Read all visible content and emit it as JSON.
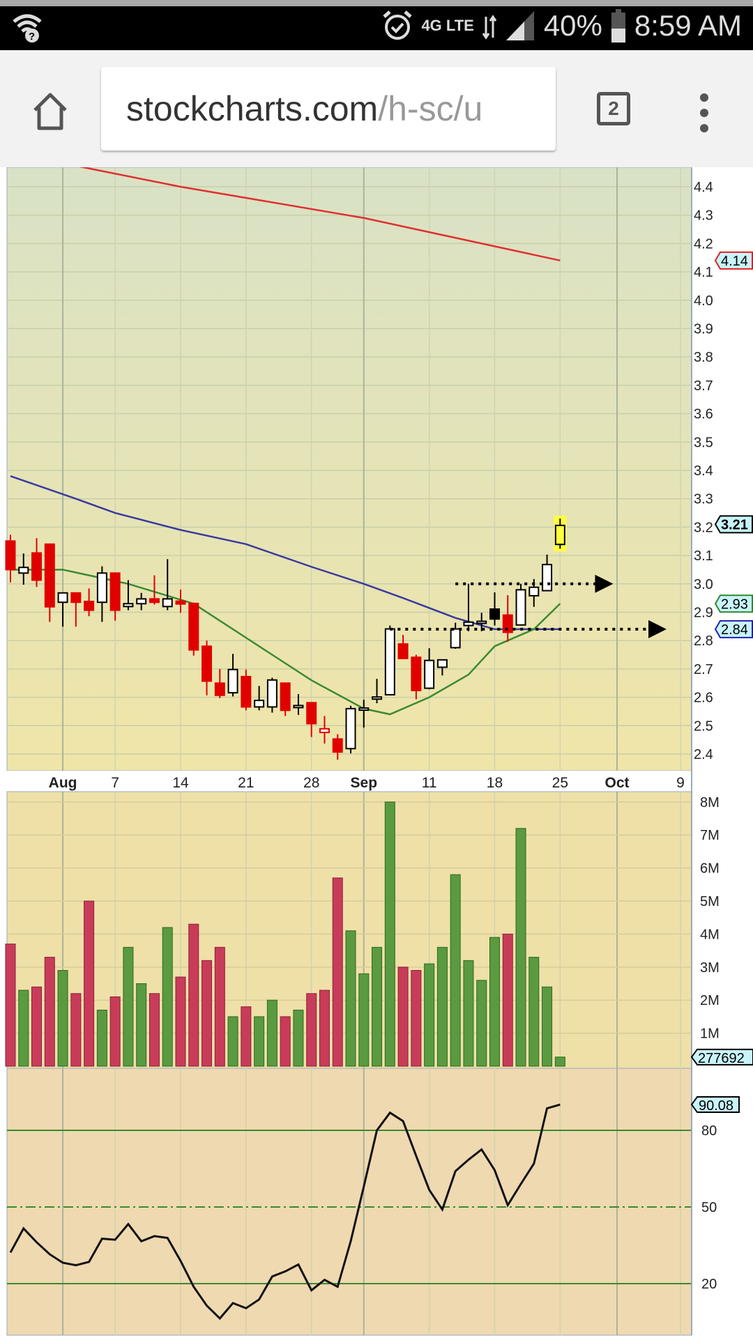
{
  "status_bar": {
    "battery": "40%",
    "time": "8:59 AM",
    "network": "4G LTE",
    "icons": [
      "wifi-question-icon",
      "alarm-icon",
      "network-4g-icon",
      "signal-icon",
      "battery-icon"
    ]
  },
  "browser": {
    "url_host": "stockcharts.com",
    "url_path": "/h-sc/u",
    "tab_count": "2",
    "icons": [
      "home-icon",
      "tabs-icon",
      "menu-dots-icon"
    ]
  },
  "chart_data": {
    "type": "candlestick",
    "price_axis": {
      "range": [
        2.35,
        4.45
      ],
      "ticks": [
        "4.4",
        "4.3",
        "4.2",
        "4.1",
        "4.0",
        "3.9",
        "3.8",
        "3.7",
        "3.6",
        "3.5",
        "3.4",
        "3.3",
        "3.2",
        "3.1",
        "3.0",
        "2.9",
        "2.8",
        "2.7",
        "2.6",
        "2.5",
        "2.4"
      ]
    },
    "price_labels": [
      {
        "text": "4.14",
        "value": 4.14,
        "color": "#e02020"
      },
      {
        "text": "3.21",
        "value": 3.21,
        "color": "#000000"
      },
      {
        "text": "2.93",
        "value": 2.93,
        "color": "#2a8a2a"
      },
      {
        "text": "2.84",
        "value": 2.84,
        "color": "#2020b0"
      }
    ],
    "date_labels": [
      {
        "label": "Aug",
        "date": "Aug 1",
        "month": true
      },
      {
        "label": "7",
        "date": "Aug 7"
      },
      {
        "label": "14",
        "date": "Aug 14"
      },
      {
        "label": "21",
        "date": "Aug 21"
      },
      {
        "label": "28",
        "date": "Aug 28"
      },
      {
        "label": "Sep",
        "date": "Sep 1",
        "month": true
      },
      {
        "label": "11",
        "date": "Sep 11"
      },
      {
        "label": "18",
        "date": "Sep 18"
      },
      {
        "label": "25",
        "date": "Sep 25"
      },
      {
        "label": "Oct",
        "date": "Oct 2",
        "month": true
      },
      {
        "label": "9",
        "date": "Oct 9"
      }
    ],
    "candles": [
      {
        "d": "Jul 26",
        "o": 3.151,
        "h": 3.173,
        "l": 3.005,
        "c": 3.05
      },
      {
        "d": "Jul 27",
        "o": 3.038,
        "h": 3.107,
        "l": 2.997,
        "c": 3.058
      },
      {
        "d": "Jul 28",
        "o": 3.109,
        "h": 3.161,
        "l": 2.989,
        "c": 3.013
      },
      {
        "d": "Jul 31",
        "o": 3.14,
        "h": 3.14,
        "l": 2.866,
        "c": 2.919
      },
      {
        "d": "Aug 1",
        "o": 2.935,
        "h": 2.968,
        "l": 2.849,
        "c": 2.968
      },
      {
        "d": "Aug 2",
        "o": 2.968,
        "h": 2.968,
        "l": 2.849,
        "c": 2.935
      },
      {
        "d": "Aug 3",
        "o": 2.938,
        "h": 2.984,
        "l": 2.886,
        "c": 2.907
      },
      {
        "d": "Aug 4",
        "o": 2.935,
        "h": 3.062,
        "l": 2.866,
        "c": 3.038
      },
      {
        "d": "Aug 7",
        "o": 3.038,
        "h": 3.038,
        "l": 2.87,
        "c": 2.907
      },
      {
        "d": "Aug 8",
        "o": 2.92,
        "h": 3.013,
        "l": 2.907,
        "c": 2.93
      },
      {
        "d": "Aug 9",
        "o": 2.93,
        "h": 2.968,
        "l": 2.907,
        "c": 2.947
      },
      {
        "d": "Aug 10",
        "o": 2.947,
        "h": 3.03,
        "l": 2.927,
        "c": 2.935
      },
      {
        "d": "Aug 11",
        "o": 2.92,
        "h": 3.087,
        "l": 2.907,
        "c": 2.947
      },
      {
        "d": "Aug 14",
        "o": 2.939,
        "h": 2.98,
        "l": 2.898,
        "c": 2.929
      },
      {
        "d": "Aug 15",
        "o": 2.931,
        "h": 2.931,
        "l": 2.747,
        "c": 2.767
      },
      {
        "d": "Aug 16",
        "o": 2.78,
        "h": 2.8,
        "l": 2.607,
        "c": 2.657
      },
      {
        "d": "Aug 17",
        "o": 2.65,
        "h": 2.7,
        "l": 2.597,
        "c": 2.607
      },
      {
        "d": "Aug 18",
        "o": 2.616,
        "h": 2.753,
        "l": 2.603,
        "c": 2.698
      },
      {
        "d": "Aug 21",
        "o": 2.673,
        "h": 2.698,
        "l": 2.554,
        "c": 2.566
      },
      {
        "d": "Aug 22",
        "o": 2.566,
        "h": 2.64,
        "l": 2.554,
        "c": 2.589
      },
      {
        "d": "Aug 23",
        "o": 2.566,
        "h": 2.669,
        "l": 2.546,
        "c": 2.661
      },
      {
        "d": "Aug 24",
        "o": 2.65,
        "h": 2.65,
        "l": 2.534,
        "c": 2.554
      },
      {
        "d": "Aug 25",
        "o": 2.569,
        "h": 2.611,
        "l": 2.538,
        "c": 2.571
      },
      {
        "d": "Aug 28",
        "o": 2.581,
        "h": 2.581,
        "l": 2.46,
        "c": 2.507
      },
      {
        "d": "Aug 29",
        "o": 2.476,
        "h": 2.534,
        "l": 2.437,
        "c": 2.489
      },
      {
        "d": "Aug 30",
        "o": 2.453,
        "h": 2.47,
        "l": 2.38,
        "c": 2.407
      },
      {
        "d": "Aug 31",
        "o": 2.419,
        "h": 2.57,
        "l": 2.402,
        "c": 2.56
      },
      {
        "d": "Sep 1",
        "o": 2.556,
        "h": 2.591,
        "l": 2.493,
        "c": 2.562
      },
      {
        "d": "Sep 5",
        "o": 2.598,
        "h": 2.665,
        "l": 2.579,
        "c": 2.601
      },
      {
        "d": "Sep 6",
        "o": 2.609,
        "h": 2.853,
        "l": 2.609,
        "c": 2.841
      },
      {
        "d": "Sep 7",
        "o": 2.788,
        "h": 2.82,
        "l": 2.737,
        "c": 2.737
      },
      {
        "d": "Sep 8",
        "o": 2.741,
        "h": 2.75,
        "l": 2.593,
        "c": 2.624
      },
      {
        "d": "Sep 11",
        "o": 2.632,
        "h": 2.773,
        "l": 2.628,
        "c": 2.73
      },
      {
        "d": "Sep 12",
        "o": 2.706,
        "h": 2.732,
        "l": 2.677,
        "c": 2.732
      },
      {
        "d": "Sep 13",
        "o": 2.775,
        "h": 2.863,
        "l": 2.771,
        "c": 2.841
      },
      {
        "d": "Sep 14",
        "o": 2.853,
        "h": 3.0,
        "l": 2.833,
        "c": 2.865
      },
      {
        "d": "Sep 15",
        "o": 2.866,
        "h": 2.898,
        "l": 2.833,
        "c": 2.868
      },
      {
        "d": "Sep 18",
        "o": 2.911,
        "h": 2.97,
        "l": 2.853,
        "c": 2.876
      },
      {
        "d": "Sep 19",
        "o": 2.89,
        "h": 2.96,
        "l": 2.796,
        "c": 2.829
      },
      {
        "d": "Sep 20",
        "o": 2.855,
        "h": 3.0,
        "l": 2.853,
        "c": 2.979
      },
      {
        "d": "Sep 21",
        "o": 2.958,
        "h": 3.017,
        "l": 2.919,
        "c": 2.988
      },
      {
        "d": "Sep 22",
        "o": 2.976,
        "h": 3.103,
        "l": 2.976,
        "c": 3.068
      },
      {
        "d": "Sep 25",
        "o": 3.139,
        "h": 3.23,
        "l": 3.124,
        "c": 3.206,
        "highlight": "#ffff40"
      }
    ],
    "moving_averages": [
      {
        "color": "#e03030",
        "points": [
          [
            "Jul 26",
            4.52
          ],
          [
            "Aug 14",
            4.4
          ],
          [
            "Sep 1",
            4.29
          ],
          [
            "Sep 25",
            4.14
          ]
        ]
      },
      {
        "color": "#3a3aa0",
        "points": [
          [
            "Jul 26",
            3.38
          ],
          [
            "Aug 2",
            3.3
          ],
          [
            "Aug 7",
            3.25
          ],
          [
            "Aug 14",
            3.19
          ],
          [
            "Aug 21",
            3.14
          ],
          [
            "Aug 28",
            3.06
          ],
          [
            "Sep 1",
            3.0
          ],
          [
            "Sep 7",
            2.95
          ],
          [
            "Sep 13",
            2.88
          ],
          [
            "Sep 18",
            2.84
          ],
          [
            "Sep 25",
            2.84
          ]
        ]
      },
      {
        "color": "#3a8a30",
        "points": [
          [
            "Jul 26",
            3.05
          ],
          [
            "Aug 1",
            3.05
          ],
          [
            "Aug 8",
            3.0
          ],
          [
            "Aug 15",
            2.93
          ],
          [
            "Aug 21",
            2.81
          ],
          [
            "Aug 28",
            2.66
          ],
          [
            "Sep 1",
            2.56
          ],
          [
            "Sep 6",
            2.54
          ],
          [
            "Sep 11",
            2.6
          ],
          [
            "Sep 14",
            2.68
          ],
          [
            "Sep 18",
            2.78
          ],
          [
            "Sep 21",
            2.84
          ],
          [
            "Sep 25",
            2.93
          ]
        ]
      }
    ],
    "annotations": [
      {
        "type": "dotted-arrow",
        "value": 3.0,
        "from": "Sep 13",
        "to": "Sep 29"
      },
      {
        "type": "dotted-arrow",
        "value": 2.84,
        "from": "Sep 6",
        "to": "Oct 3"
      }
    ],
    "volume": {
      "ticks": [
        "8M",
        "7M",
        "6M",
        "5M",
        "4M",
        "3M",
        "2M",
        "1M"
      ],
      "range_millions": [
        0,
        8.3
      ],
      "last_label": "277692",
      "values_millions": [
        3.7,
        2.3,
        2.4,
        3.3,
        2.9,
        2.2,
        5.0,
        1.7,
        2.1,
        3.6,
        2.5,
        2.2,
        4.2,
        2.7,
        4.3,
        3.2,
        3.6,
        1.5,
        1.8,
        1.5,
        2.0,
        1.5,
        1.7,
        2.2,
        2.3,
        5.7,
        4.1,
        2.8,
        3.6,
        8.0,
        3.0,
        2.9,
        3.1,
        3.6,
        5.8,
        3.2,
        2.6,
        3.9,
        4.0,
        7.2,
        3.3,
        2.4,
        0.277692
      ],
      "up_color": "#5a9a40",
      "down_color": "#c83c5a"
    },
    "rsi": {
      "ticks": [
        "80",
        "50",
        "20"
      ],
      "last_label": "90.08",
      "values": [
        32.2,
        41.6,
        36.2,
        31.5,
        28.2,
        27.2,
        28.5,
        37.6,
        37.2,
        43.3,
        36.6,
        38.6,
        37.9,
        28.9,
        18.8,
        11.4,
        6.4,
        12.4,
        10.4,
        13.8,
        22.8,
        24.8,
        27.5,
        17.4,
        21.5,
        18.8,
        36.6,
        58,
        80,
        86.9,
        83.6,
        70,
        56.7,
        49,
        64,
        68.5,
        72.5,
        64.4,
        50.7,
        59,
        67,
        88.6,
        90.08
      ]
    }
  }
}
